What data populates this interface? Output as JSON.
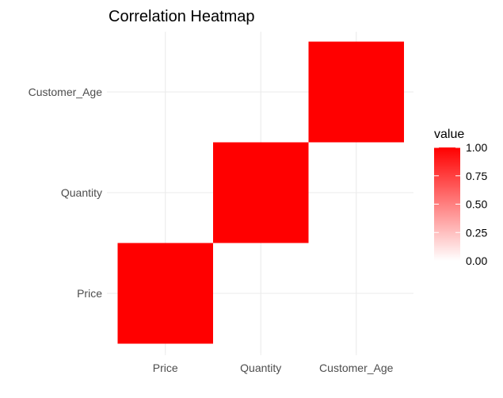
{
  "chart_data": {
    "type": "heatmap",
    "title": "Correlation Heatmap",
    "x_categories": [
      "Price",
      "Quantity",
      "Customer_Age"
    ],
    "y_categories": [
      "Price",
      "Quantity",
      "Customer_Age"
    ],
    "values": [
      [
        1,
        0,
        0
      ],
      [
        0,
        1,
        0
      ],
      [
        0,
        0,
        1
      ]
    ],
    "color_low": "#ffffff",
    "color_high": "#ff0000",
    "legend": {
      "title": "value",
      "labels": [
        "1.00",
        "0.75",
        "0.50",
        "0.25",
        "0.00"
      ],
      "tick_values": [
        1.0,
        0.75,
        0.5,
        0.25,
        0.0
      ],
      "range": [
        0,
        1
      ],
      "placement": "right"
    },
    "grid": true,
    "grid_color": "#ebebeb"
  }
}
